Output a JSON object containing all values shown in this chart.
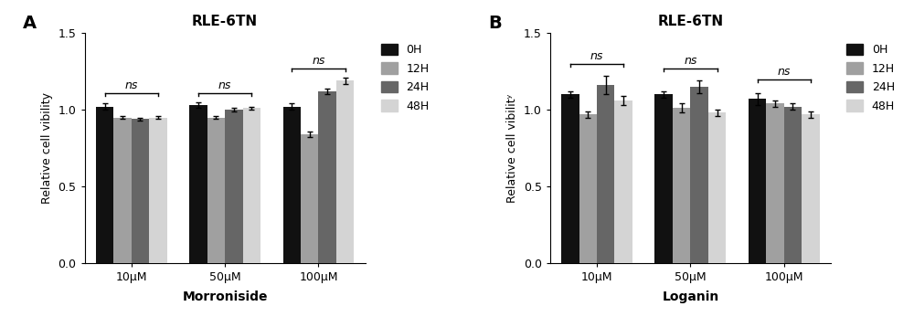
{
  "panel_A": {
    "title": "RLE-6TN",
    "xlabel": "Morroniside",
    "ylabel": "Relative cell vibility",
    "panel_label": "A",
    "groups": [
      "10μM",
      "50μM",
      "100μM"
    ],
    "series_labels": [
      "0H",
      "12H",
      "24H",
      "48H"
    ],
    "bar_colors": [
      "#111111",
      "#a0a0a0",
      "#666666",
      "#d4d4d4"
    ],
    "values": [
      [
        1.02,
        0.95,
        0.94,
        0.95
      ],
      [
        1.03,
        0.95,
        1.0,
        1.01
      ],
      [
        1.02,
        0.84,
        1.12,
        1.19
      ]
    ],
    "errors": [
      [
        0.02,
        0.01,
        0.01,
        0.01
      ],
      [
        0.02,
        0.01,
        0.01,
        0.01
      ],
      [
        0.02,
        0.02,
        0.02,
        0.02
      ]
    ],
    "ylim": [
      0.0,
      1.5
    ],
    "yticks": [
      0.0,
      0.5,
      1.0,
      1.5
    ],
    "ns_brackets": [
      {
        "g1": 0,
        "g2": 0,
        "y": 1.11,
        "label": "ns"
      },
      {
        "g1": 1,
        "g2": 1,
        "y": 1.11,
        "label": "ns"
      },
      {
        "g1": 2,
        "g2": 2,
        "y": 1.27,
        "label": "ns"
      }
    ]
  },
  "panel_B": {
    "title": "RLE-6TN",
    "xlabel": "Loganin",
    "ylabel": "Relative cell vibilitʸ",
    "panel_label": "B",
    "groups": [
      "10μM",
      "50μM",
      "100μM"
    ],
    "series_labels": [
      "0H",
      "12H",
      "24H",
      "48H"
    ],
    "bar_colors": [
      "#111111",
      "#a0a0a0",
      "#666666",
      "#d4d4d4"
    ],
    "values": [
      [
        1.1,
        0.97,
        1.16,
        1.06
      ],
      [
        1.1,
        1.01,
        1.15,
        0.98
      ],
      [
        1.07,
        1.04,
        1.02,
        0.97
      ]
    ],
    "errors": [
      [
        0.02,
        0.02,
        0.06,
        0.03
      ],
      [
        0.02,
        0.03,
        0.04,
        0.02
      ],
      [
        0.04,
        0.02,
        0.02,
        0.02
      ]
    ],
    "ylim": [
      0.0,
      1.5
    ],
    "yticks": [
      0.0,
      0.5,
      1.0,
      1.5
    ],
    "ns_brackets": [
      {
        "g1": 0,
        "g2": 0,
        "y": 1.3,
        "label": "ns"
      },
      {
        "g1": 1,
        "g2": 1,
        "y": 1.27,
        "label": "ns"
      },
      {
        "g1": 2,
        "g2": 2,
        "y": 1.2,
        "label": "ns"
      }
    ]
  }
}
